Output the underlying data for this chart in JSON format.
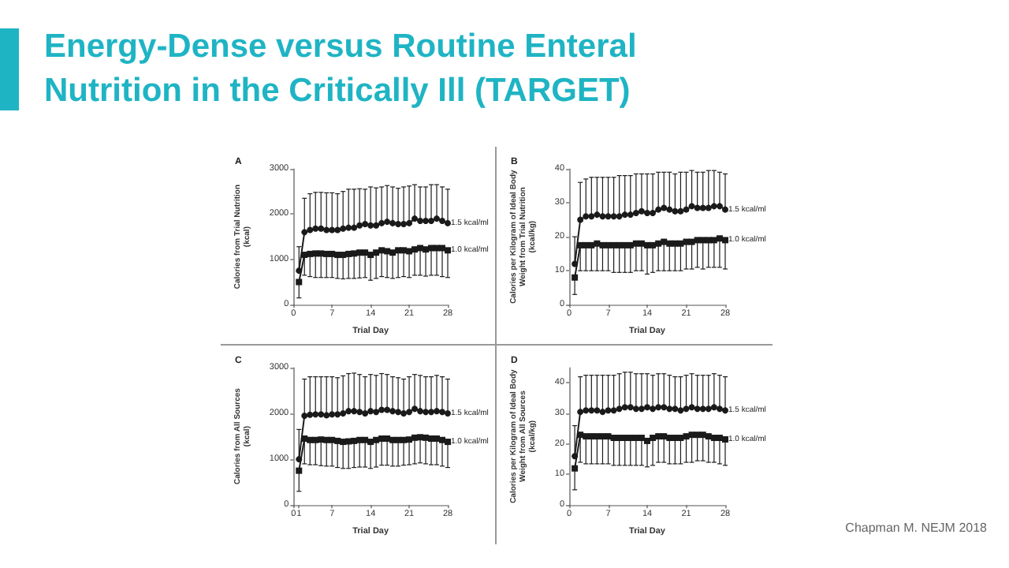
{
  "chart_data": [
    {
      "type": "line",
      "title": "A",
      "annotations": [
        "Energy-Dense versus Routine Enteral Nutrition in the Critically Ill (TARGET)"
      ],
      "xlabel": "Trial Day",
      "ylabel": "Calories from Trial Nutrition\n(kcal)",
      "x": [
        1,
        2,
        3,
        4,
        5,
        6,
        7,
        8,
        9,
        10,
        11,
        12,
        13,
        14,
        15,
        16,
        17,
        18,
        19,
        20,
        21,
        22,
        23,
        24,
        25,
        26,
        27,
        28
      ],
      "xlim": [
        0,
        28
      ],
      "xticks": [
        0,
        7,
        14,
        21,
        28
      ],
      "ylim": [
        0,
        3000
      ],
      "yticks": [
        0,
        1000,
        2000,
        3000
      ],
      "grid": false,
      "legend": false,
      "line_style": "solid",
      "series": [
        {
          "name": "1.5 kcal/ml",
          "color": "#1a1a1a",
          "marker": "circle",
          "values": [
            750,
            1600,
            1650,
            1680,
            1680,
            1650,
            1650,
            1650,
            1680,
            1700,
            1700,
            1750,
            1780,
            1750,
            1750,
            1800,
            1830,
            1800,
            1780,
            1780,
            1800,
            1900,
            1850,
            1850,
            1850,
            1900,
            1850,
            1800
          ],
          "errors": [
            [
              750,
              1280
            ],
            [
              1600,
              2350
            ],
            [
              1650,
              2450
            ],
            [
              1680,
              2480
            ],
            [
              1680,
              2480
            ],
            [
              1650,
              2470
            ],
            [
              1650,
              2470
            ],
            [
              1650,
              2450
            ],
            [
              1680,
              2500
            ],
            [
              1700,
              2550
            ],
            [
              1700,
              2550
            ],
            [
              1750,
              2560
            ],
            [
              1780,
              2550
            ],
            [
              1750,
              2600
            ],
            [
              1750,
              2580
            ],
            [
              1800,
              2600
            ],
            [
              1830,
              2630
            ],
            [
              1800,
              2600
            ],
            [
              1780,
              2570
            ],
            [
              1780,
              2600
            ],
            [
              1800,
              2620
            ],
            [
              1900,
              2650
            ],
            [
              1850,
              2600
            ],
            [
              1850,
              2600
            ],
            [
              1850,
              2650
            ],
            [
              1900,
              2650
            ],
            [
              1850,
              2600
            ],
            [
              1800,
              2550
            ]
          ]
        },
        {
          "name": "1.0 kcal/ml",
          "color": "#1a1a1a",
          "marker": "square",
          "values": [
            500,
            1100,
            1120,
            1130,
            1130,
            1120,
            1120,
            1100,
            1100,
            1120,
            1130,
            1150,
            1150,
            1100,
            1150,
            1200,
            1180,
            1150,
            1200,
            1200,
            1180,
            1220,
            1250,
            1220,
            1250,
            1250,
            1250,
            1200
          ],
          "errors": [
            [
              150,
              500
            ],
            [
              650,
              1100
            ],
            [
              620,
              1120
            ],
            [
              600,
              1130
            ],
            [
              600,
              1130
            ],
            [
              600,
              1120
            ],
            [
              600,
              1120
            ],
            [
              580,
              1100
            ],
            [
              570,
              1100
            ],
            [
              580,
              1120
            ],
            [
              580,
              1130
            ],
            [
              590,
              1150
            ],
            [
              600,
              1150
            ],
            [
              540,
              1100
            ],
            [
              580,
              1150
            ],
            [
              620,
              1200
            ],
            [
              600,
              1180
            ],
            [
              580,
              1150
            ],
            [
              600,
              1200
            ],
            [
              620,
              1200
            ],
            [
              600,
              1180
            ],
            [
              650,
              1220
            ],
            [
              650,
              1250
            ],
            [
              630,
              1220
            ],
            [
              650,
              1250
            ],
            [
              650,
              1250
            ],
            [
              620,
              1250
            ],
            [
              600,
              1200
            ]
          ]
        }
      ]
    },
    {
      "type": "line",
      "title": "B",
      "xlabel": "Trial Day",
      "ylabel": "Calories per Kilogram of Ideal Body\nWeight from Trial Nutrition\n(kcal/kg)",
      "x": [
        1,
        2,
        3,
        4,
        5,
        6,
        7,
        8,
        9,
        10,
        11,
        12,
        13,
        14,
        15,
        16,
        17,
        18,
        19,
        20,
        21,
        22,
        23,
        24,
        25,
        26,
        27,
        28
      ],
      "xlim": [
        0,
        28
      ],
      "xticks": [
        0,
        7,
        14,
        21,
        28
      ],
      "ylim": [
        0,
        40
      ],
      "yticks": [
        0,
        10,
        20,
        30,
        40
      ],
      "grid": false,
      "legend": false,
      "line_style": "solid",
      "series": [
        {
          "name": "1.5 kcal/ml",
          "color": "#1a1a1a",
          "marker": "circle",
          "values": [
            12,
            25,
            26,
            26,
            26.5,
            26,
            26,
            26,
            26,
            26.5,
            26.5,
            27,
            27.5,
            27,
            27,
            28,
            28.5,
            28,
            27.5,
            27.5,
            28,
            29,
            28.5,
            28.5,
            28.5,
            29,
            29,
            28
          ],
          "errors": [
            [
              12,
              20
            ],
            [
              25,
              36
            ],
            [
              26,
              37
            ],
            [
              26,
              37.5
            ],
            [
              26.5,
              37.5
            ],
            [
              26,
              37.5
            ],
            [
              26,
              37.5
            ],
            [
              26,
              37.5
            ],
            [
              26,
              38
            ],
            [
              26.5,
              38
            ],
            [
              26.5,
              38
            ],
            [
              27,
              38.5
            ],
            [
              27.5,
              38.5
            ],
            [
              27,
              38.5
            ],
            [
              27,
              38.5
            ],
            [
              28,
              39
            ],
            [
              28.5,
              39
            ],
            [
              28,
              39
            ],
            [
              27.5,
              38.5
            ],
            [
              27.5,
              39
            ],
            [
              28,
              39
            ],
            [
              29,
              39.5
            ],
            [
              28.5,
              39
            ],
            [
              28.5,
              39
            ],
            [
              28.5,
              39.5
            ],
            [
              29,
              39.5
            ],
            [
              29,
              39
            ],
            [
              28,
              38.5
            ]
          ]
        },
        {
          "name": "1.0 kcal/ml",
          "color": "#1a1a1a",
          "marker": "square",
          "values": [
            8,
            17.5,
            17.5,
            17.5,
            18,
            17.5,
            17.5,
            17.5,
            17.5,
            17.5,
            17.5,
            18,
            18,
            17.5,
            17.5,
            18,
            18.5,
            18,
            18,
            18,
            18.5,
            18.5,
            19,
            19,
            19,
            19,
            19.5,
            19
          ],
          "errors": [
            [
              3,
              8
            ],
            [
              10,
              17.5
            ],
            [
              10,
              17.5
            ],
            [
              10,
              17.5
            ],
            [
              10,
              18
            ],
            [
              10,
              17.5
            ],
            [
              10,
              17.5
            ],
            [
              9.5,
              17.5
            ],
            [
              9.5,
              17.5
            ],
            [
              9.5,
              17.5
            ],
            [
              9.5,
              17.5
            ],
            [
              10,
              18
            ],
            [
              10,
              18
            ],
            [
              9,
              17.5
            ],
            [
              9.5,
              17.5
            ],
            [
              10,
              18
            ],
            [
              10,
              18.5
            ],
            [
              10,
              18
            ],
            [
              10,
              18
            ],
            [
              10,
              18
            ],
            [
              10.5,
              18.5
            ],
            [
              10.5,
              18.5
            ],
            [
              11,
              19
            ],
            [
              10.5,
              19
            ],
            [
              11,
              19
            ],
            [
              11,
              19
            ],
            [
              11,
              19.5
            ],
            [
              10.5,
              19
            ]
          ]
        }
      ]
    },
    {
      "type": "line",
      "title": "C",
      "xlabel": "Trial Day",
      "ylabel": "Calories from All Sources\n(kcal)",
      "x": [
        1,
        2,
        3,
        4,
        5,
        6,
        7,
        8,
        9,
        10,
        11,
        12,
        13,
        14,
        15,
        16,
        17,
        18,
        19,
        20,
        21,
        22,
        23,
        24,
        25,
        26,
        27,
        28
      ],
      "xlim": [
        0,
        28
      ],
      "xticks": [
        0,
        1,
        7,
        14,
        21,
        28
      ],
      "ylim": [
        0,
        3000
      ],
      "yticks": [
        0,
        1000,
        2000,
        3000
      ],
      "grid": false,
      "legend": false,
      "line_style": "solid",
      "series": [
        {
          "name": "1.5 kcal/ml",
          "color": "#1a1a1a",
          "marker": "circle",
          "values": [
            1000,
            1950,
            1970,
            1980,
            1980,
            1960,
            1980,
            1980,
            2000,
            2050,
            2050,
            2030,
            2000,
            2050,
            2030,
            2080,
            2080,
            2050,
            2030,
            2000,
            2030,
            2100,
            2050,
            2030,
            2030,
            2050,
            2030,
            2000
          ],
          "errors": [
            [
              1000,
              1650
            ],
            [
              1950,
              2750
            ],
            [
              1970,
              2800
            ],
            [
              1980,
              2800
            ],
            [
              1980,
              2800
            ],
            [
              1960,
              2800
            ],
            [
              1980,
              2800
            ],
            [
              1980,
              2780
            ],
            [
              2000,
              2820
            ],
            [
              2050,
              2870
            ],
            [
              2050,
              2880
            ],
            [
              2030,
              2850
            ],
            [
              2000,
              2800
            ],
            [
              2050,
              2850
            ],
            [
              2030,
              2830
            ],
            [
              2080,
              2870
            ],
            [
              2080,
              2850
            ],
            [
              2050,
              2800
            ],
            [
              2030,
              2780
            ],
            [
              2000,
              2750
            ],
            [
              2030,
              2800
            ],
            [
              2100,
              2850
            ],
            [
              2050,
              2830
            ],
            [
              2030,
              2800
            ],
            [
              2030,
              2800
            ],
            [
              2050,
              2830
            ],
            [
              2030,
              2800
            ],
            [
              2000,
              2750
            ]
          ]
        },
        {
          "name": "1.0 kcal/ml",
          "color": "#1a1a1a",
          "marker": "square",
          "values": [
            750,
            1450,
            1420,
            1420,
            1430,
            1420,
            1420,
            1400,
            1380,
            1390,
            1400,
            1420,
            1420,
            1380,
            1420,
            1450,
            1450,
            1420,
            1420,
            1420,
            1430,
            1470,
            1480,
            1470,
            1450,
            1450,
            1420,
            1380
          ],
          "errors": [
            [
              300,
              750
            ],
            [
              900,
              1450
            ],
            [
              880,
              1420
            ],
            [
              880,
              1420
            ],
            [
              860,
              1430
            ],
            [
              850,
              1420
            ],
            [
              850,
              1420
            ],
            [
              820,
              1400
            ],
            [
              800,
              1380
            ],
            [
              800,
              1390
            ],
            [
              820,
              1400
            ],
            [
              830,
              1420
            ],
            [
              830,
              1420
            ],
            [
              800,
              1380
            ],
            [
              830,
              1420
            ],
            [
              870,
              1450
            ],
            [
              870,
              1450
            ],
            [
              850,
              1420
            ],
            [
              850,
              1420
            ],
            [
              870,
              1420
            ],
            [
              880,
              1430
            ],
            [
              900,
              1470
            ],
            [
              920,
              1480
            ],
            [
              900,
              1470
            ],
            [
              880,
              1450
            ],
            [
              880,
              1450
            ],
            [
              850,
              1420
            ],
            [
              820,
              1380
            ]
          ]
        }
      ]
    },
    {
      "type": "line",
      "title": "D",
      "annotations": [
        "Chapman M. NEJM 2018"
      ],
      "xlabel": "Trial Day",
      "ylabel": "Calories per Kilogram of Ideal Body\nWeight from All Sources\n(kcal/kg)",
      "x": [
        1,
        2,
        3,
        4,
        5,
        6,
        7,
        8,
        9,
        10,
        11,
        12,
        13,
        14,
        15,
        16,
        17,
        18,
        19,
        20,
        21,
        22,
        23,
        24,
        25,
        26,
        27,
        28
      ],
      "xlim": [
        0,
        28
      ],
      "xticks": [
        0,
        7,
        14,
        21,
        28
      ],
      "ylim": [
        0,
        45
      ],
      "yticks": [
        0,
        10,
        20,
        30,
        40
      ],
      "grid": false,
      "legend": false,
      "line_style": "solid",
      "series": [
        {
          "name": "1.5 kcal/ml",
          "color": "#1a1a1a",
          "marker": "circle",
          "values": [
            16,
            30.5,
            31,
            31,
            31,
            30.5,
            31,
            31,
            31.5,
            32,
            32,
            31.5,
            31.5,
            32,
            31.5,
            32,
            32,
            31.5,
            31.5,
            31,
            31.5,
            32,
            31.5,
            31.5,
            31.5,
            32,
            31.5,
            31
          ],
          "errors": [
            [
              16,
              26
            ],
            [
              30.5,
              42
            ],
            [
              31,
              42.5
            ],
            [
              31,
              42.5
            ],
            [
              31,
              42.5
            ],
            [
              30.5,
              42.5
            ],
            [
              31,
              42.5
            ],
            [
              31,
              42.5
            ],
            [
              31.5,
              43
            ],
            [
              32,
              43.5
            ],
            [
              32,
              43.5
            ],
            [
              31.5,
              43
            ],
            [
              31.5,
              43
            ],
            [
              32,
              43
            ],
            [
              31.5,
              42.5
            ],
            [
              32,
              43
            ],
            [
              32,
              43
            ],
            [
              31.5,
              42.5
            ],
            [
              31.5,
              42
            ],
            [
              31,
              42
            ],
            [
              31.5,
              42.5
            ],
            [
              32,
              43
            ],
            [
              31.5,
              42.5
            ],
            [
              31.5,
              42.5
            ],
            [
              31.5,
              42.5
            ],
            [
              32,
              43
            ],
            [
              31.5,
              42.5
            ],
            [
              31,
              42
            ]
          ]
        },
        {
          "name": "1.0 kcal/ml",
          "color": "#1a1a1a",
          "marker": "square",
          "values": [
            12,
            23,
            22.5,
            22.5,
            22.5,
            22.5,
            22.5,
            22,
            22,
            22,
            22,
            22,
            22,
            21,
            22,
            22.5,
            22.5,
            22,
            22,
            22,
            22.5,
            23,
            23,
            23,
            22.5,
            22,
            22,
            21.5
          ],
          "errors": [
            [
              5,
              12
            ],
            [
              14,
              23
            ],
            [
              13.5,
              22.5
            ],
            [
              13.5,
              22.5
            ],
            [
              13.5,
              22.5
            ],
            [
              13.5,
              22.5
            ],
            [
              13.5,
              22.5
            ],
            [
              13,
              22
            ],
            [
              13,
              22
            ],
            [
              13,
              22
            ],
            [
              13,
              22
            ],
            [
              13,
              22
            ],
            [
              13,
              22
            ],
            [
              12.5,
              21
            ],
            [
              13,
              22
            ],
            [
              14,
              22.5
            ],
            [
              14,
              22.5
            ],
            [
              13.5,
              22
            ],
            [
              13.5,
              22
            ],
            [
              13.5,
              22
            ],
            [
              14,
              22.5
            ],
            [
              14,
              23
            ],
            [
              14.5,
              23
            ],
            [
              14.5,
              23
            ],
            [
              14,
              22.5
            ],
            [
              14,
              22
            ],
            [
              13.5,
              22
            ],
            [
              13,
              21.5
            ]
          ]
        }
      ]
    }
  ]
}
